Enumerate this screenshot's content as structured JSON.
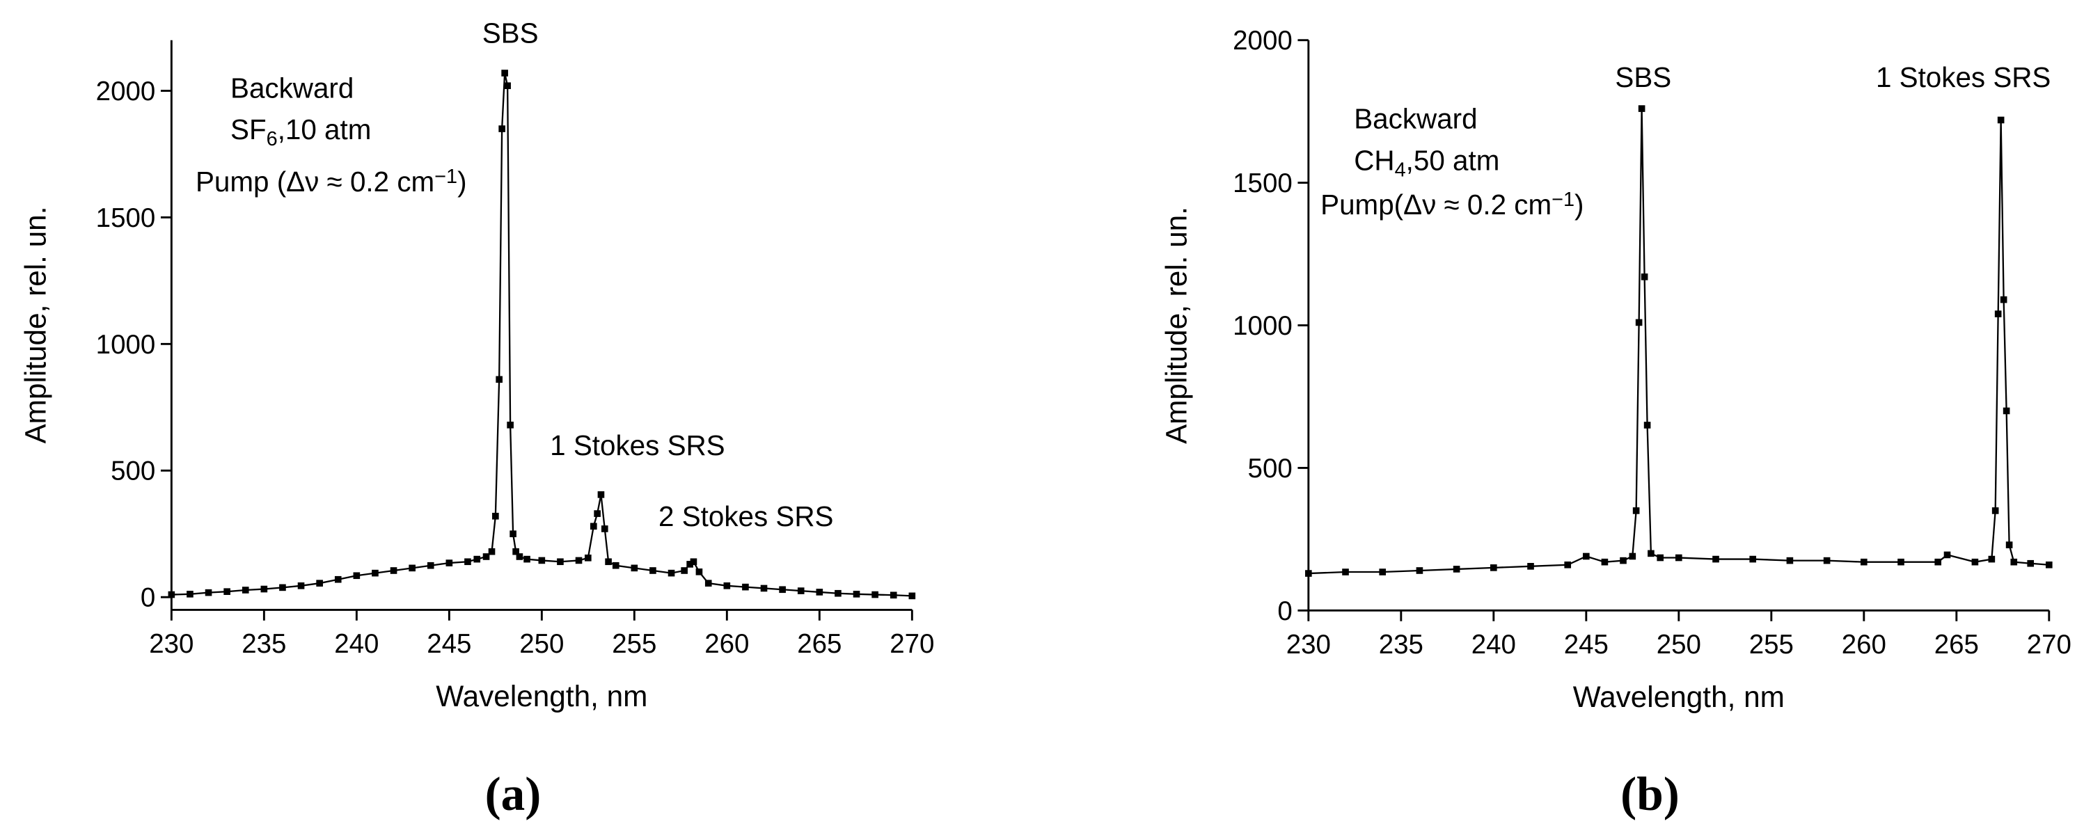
{
  "chart_data": [
    {
      "type": "line",
      "label": "(a)",
      "xlabel": "Wavelength, nm",
      "ylabel": "Amplitude, rel. un.",
      "xlim": [
        230,
        270
      ],
      "xticks": [
        230,
        235,
        240,
        245,
        250,
        255,
        260,
        265,
        270
      ],
      "ylim": [
        -50,
        2200
      ],
      "yticks": [
        0,
        500,
        1000,
        1500,
        2000
      ],
      "annotations": [
        [
          {
            "text": "SBS"
          }
        ],
        [
          {
            "text": "1 Stokes SRS"
          }
        ],
        [
          {
            "text": "2 Stokes SRS"
          }
        ],
        [
          {
            "text": "Backward"
          }
        ],
        [
          {
            "text": "SF"
          },
          {
            "text": "6",
            "script": "sub"
          },
          {
            "text": ",10 atm"
          }
        ],
        [
          {
            "text": "Pump (Δν ≈ 0.2 cm"
          },
          {
            "text": "−1",
            "script": "super"
          },
          {
            "text": ")"
          }
        ]
      ],
      "series": [
        {
          "color": "#000000",
          "x": [
            230,
            231,
            232,
            233,
            234,
            235,
            236,
            237,
            238,
            239,
            240,
            241,
            242,
            243,
            244,
            245,
            246,
            246.5,
            247,
            247.3,
            247.5,
            247.7,
            247.85,
            248.0,
            248.15,
            248.3,
            248.45,
            248.6,
            248.8,
            249.2,
            250,
            251,
            252,
            252.5,
            252.8,
            253.0,
            253.2,
            253.4,
            253.6,
            254,
            255,
            256,
            257,
            257.7,
            258.0,
            258.2,
            258.5,
            259,
            260,
            261,
            262,
            263,
            264,
            265,
            266,
            267,
            268,
            269,
            270
          ],
          "values": [
            10,
            12,
            18,
            22,
            28,
            32,
            38,
            45,
            55,
            70,
            85,
            95,
            105,
            115,
            125,
            135,
            140,
            150,
            160,
            180,
            320,
            860,
            1850,
            2070,
            2020,
            680,
            250,
            180,
            160,
            150,
            145,
            140,
            145,
            155,
            280,
            330,
            405,
            270,
            140,
            125,
            115,
            105,
            95,
            105,
            130,
            140,
            100,
            55,
            45,
            40,
            35,
            30,
            25,
            20,
            15,
            12,
            10,
            8,
            5
          ]
        }
      ]
    },
    {
      "type": "line",
      "label": "(b)",
      "xlabel": "Wavelength, nm",
      "ylabel": "Amplitude, rel. un.",
      "xlim": [
        230,
        270
      ],
      "xticks": [
        230,
        235,
        240,
        245,
        250,
        255,
        260,
        265,
        270
      ],
      "ylim": [
        0,
        2000
      ],
      "yticks": [
        0,
        500,
        1000,
        1500,
        2000
      ],
      "annotations": [
        [
          {
            "text": "SBS"
          }
        ],
        [
          {
            "text": "1 Stokes SRS"
          }
        ],
        [
          {
            "text": "Backward"
          }
        ],
        [
          {
            "text": "CH"
          },
          {
            "text": "4",
            "script": "sub"
          },
          {
            "text": ",50 atm"
          }
        ],
        [
          {
            "text": "Pump(Δν ≈ 0.2 cm"
          },
          {
            "text": "−1",
            "script": "super"
          },
          {
            "text": ")"
          }
        ]
      ],
      "series": [
        {
          "color": "#000000",
          "x": [
            230,
            232,
            234,
            236,
            238,
            240,
            242,
            244,
            245,
            246,
            247,
            247.5,
            247.7,
            247.85,
            248.0,
            248.15,
            248.3,
            248.5,
            249,
            250,
            252,
            254,
            256,
            258,
            260,
            262,
            264,
            264.5,
            266,
            266.9,
            267.1,
            267.25,
            267.4,
            267.55,
            267.7,
            267.85,
            268.1,
            269,
            270
          ],
          "values": [
            130,
            135,
            135,
            140,
            145,
            150,
            155,
            160,
            190,
            170,
            175,
            190,
            350,
            1010,
            1760,
            1170,
            650,
            200,
            185,
            185,
            180,
            180,
            175,
            175,
            170,
            170,
            170,
            195,
            170,
            180,
            350,
            1040,
            1720,
            1090,
            700,
            230,
            170,
            165,
            160
          ]
        }
      ]
    }
  ]
}
